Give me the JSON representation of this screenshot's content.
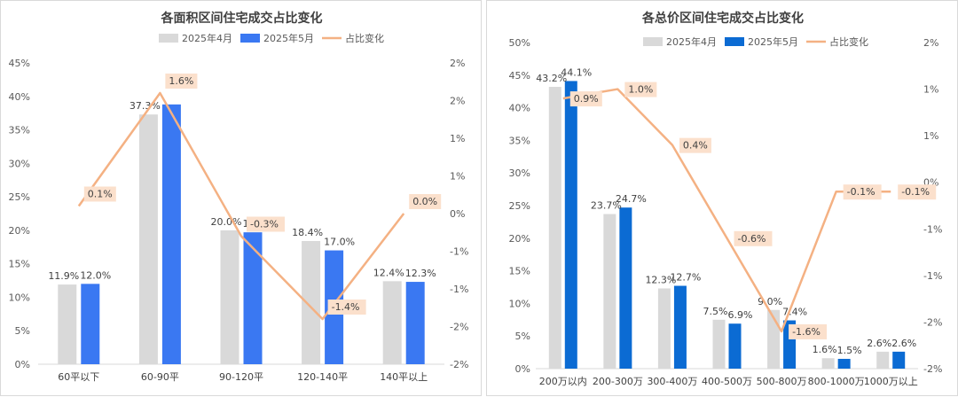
{
  "colors": {
    "apr": "#d9d9d9",
    "may_left": "#3a78f2",
    "may_right": "#0b6bd3",
    "change": "#f4b183",
    "change_label_bg": "#fbe0cc"
  },
  "chart_data": [
    {
      "type": "bar",
      "title": "各面积区间住宅成交占比变化",
      "legend": [
        "2025年4月",
        "2025年5月",
        "占比变化"
      ],
      "legend_position": "top",
      "categories": [
        "60平以下",
        "60-90平",
        "90-120平",
        "120-140平",
        "140平以上"
      ],
      "series": [
        {
          "name": "2025年4月",
          "values": [
            11.9,
            37.3,
            20.0,
            18.4,
            12.4
          ],
          "labels": [
            "11.9%",
            "37.3%",
            "20.0%",
            "18.4%",
            "12.4%"
          ]
        },
        {
          "name": "2025年5月",
          "values": [
            12.0,
            38.8,
            19.7,
            17.0,
            12.3
          ],
          "labels": [
            "12.0%",
            "",
            "19.7%",
            "17.0%",
            "12.3%"
          ]
        },
        {
          "name": "占比变化",
          "axis": "right",
          "values": [
            0.1,
            1.6,
            -0.3,
            -1.4,
            0.0
          ],
          "labels": [
            "0.1%",
            "1.6%",
            "-0.3%",
            "-1.4%",
            "0.0%"
          ]
        }
      ],
      "ylim": [
        0,
        45
      ],
      "yticks": [
        "0%",
        "5%",
        "10%",
        "15%",
        "20%",
        "25%",
        "30%",
        "35%",
        "40%",
        "45%"
      ],
      "y2lim": [
        -2,
        2
      ],
      "y2ticks": [
        "-2%",
        "-2%",
        "-1%",
        "-1%",
        "0%",
        "1%",
        "1%",
        "2%",
        "2%"
      ],
      "grid": false
    },
    {
      "type": "bar",
      "title": "各总价区间住宅成交占比变化",
      "legend": [
        "2025年4月",
        "2025年5月",
        "占比变化"
      ],
      "legend_position": "top",
      "categories": [
        "200万以内",
        "200-300万",
        "300-400万",
        "400-500万",
        "500-800万",
        "800-1000万",
        "1000万以上"
      ],
      "series": [
        {
          "name": "2025年4月",
          "values": [
            43.2,
            23.7,
            12.3,
            7.5,
            9.0,
            1.6,
            2.6
          ],
          "labels": [
            "43.2%",
            "23.7%",
            "12.3%",
            "7.5%",
            "9.0%",
            "1.6%",
            "2.6%"
          ]
        },
        {
          "name": "2025年5月",
          "values": [
            44.1,
            24.7,
            12.7,
            6.9,
            7.4,
            1.5,
            2.6
          ],
          "labels": [
            "44.1%",
            "24.7%",
            "12.7%",
            "6.9%",
            "7.4%",
            "1.5%",
            "2.6%"
          ]
        },
        {
          "name": "占比变化",
          "axis": "right",
          "values": [
            0.9,
            1.0,
            0.4,
            -0.6,
            -1.6,
            -0.1,
            -0.1
          ],
          "labels": [
            "0.9%",
            "1.0%",
            "0.4%",
            "-0.6%",
            "-1.6%",
            "-0.1%",
            "-0.1%"
          ]
        }
      ],
      "ylim": [
        0,
        50
      ],
      "yticks": [
        "0%",
        "5%",
        "10%",
        "15%",
        "20%",
        "25%",
        "30%",
        "35%",
        "40%",
        "45%",
        "50%"
      ],
      "y2lim": [
        -2,
        1.5
      ],
      "y2ticks": [
        "-2%",
        "-2%",
        "-1%",
        "-1%",
        "0%",
        "1%",
        "1%",
        "2%"
      ],
      "grid": false
    }
  ]
}
